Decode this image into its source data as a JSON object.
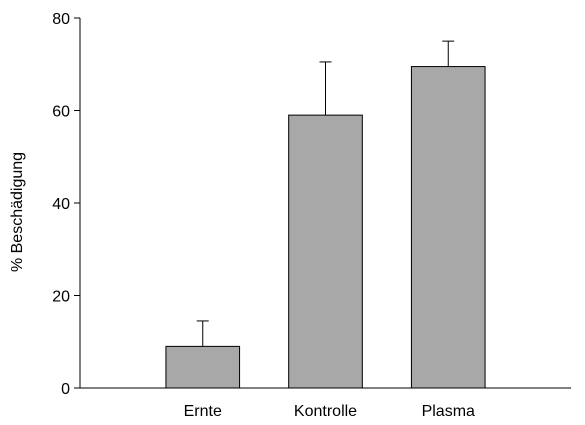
{
  "chart_data": {
    "type": "bar",
    "categories": [
      "Ernte",
      "Kontrolle",
      "Plasma"
    ],
    "values": [
      9,
      59,
      69.5
    ],
    "errors": [
      5.5,
      11.5,
      5.5
    ],
    "title": "",
    "xlabel": "",
    "ylabel": "% Beschädigung",
    "ylim": [
      0,
      80
    ],
    "yticks": [
      0,
      20,
      40,
      60,
      80
    ],
    "xlim": [
      0,
      4
    ],
    "grid": false,
    "legend": "none",
    "bar_color": "#a8a8a8",
    "edge_color": "#000000"
  }
}
